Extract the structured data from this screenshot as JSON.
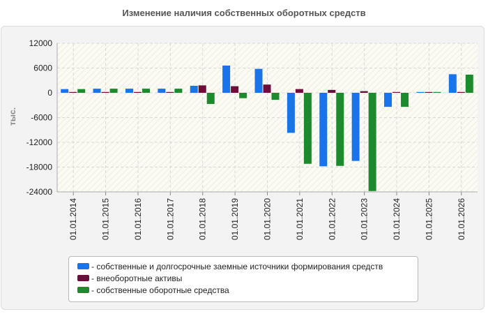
{
  "chart_data": {
    "type": "bar",
    "title": "Изменение наличия собственных оборотных средств",
    "ylabel": "тыс.",
    "ylim": [
      -24000,
      12000
    ],
    "yticks": [
      12000,
      6000,
      0,
      -6000,
      -12000,
      -18000,
      -24000
    ],
    "ytick_labels": [
      "12000",
      "6000",
      "0",
      "-6000",
      "-12000",
      "-18000",
      "-24000"
    ],
    "categories": [
      "01.01.2014",
      "01.01.2015",
      "01.01.2016",
      "01.01.2017",
      "01.01.2018",
      "01.01.2019",
      "01.01.2020",
      "01.01.2021",
      "01.01.2022",
      "01.01.2023",
      "01.01.2024",
      "01.01.2025",
      "01.01.2026"
    ],
    "series": [
      {
        "name": "- собственные и долгосрочные заемные источники формирования средств",
        "color": "#1a73e8",
        "values": [
          900,
          1000,
          1000,
          1000,
          1700,
          6600,
          5800,
          -9700,
          -17800,
          -16500,
          -3400,
          200,
          4500
        ]
      },
      {
        "name": "- внеоборотные активы",
        "color": "#6b0f3a",
        "values": [
          200,
          200,
          200,
          200,
          1800,
          1600,
          2000,
          900,
          700,
          400,
          200,
          200,
          200
        ]
      },
      {
        "name": "- собственные оборотные средства",
        "color": "#1e8a2e",
        "values": [
          900,
          1000,
          1000,
          1000,
          -2700,
          -1300,
          -1700,
          -17200,
          -17700,
          -23800,
          -3400,
          200,
          4400
        ]
      }
    ],
    "grid": true,
    "legend": "bottom"
  }
}
